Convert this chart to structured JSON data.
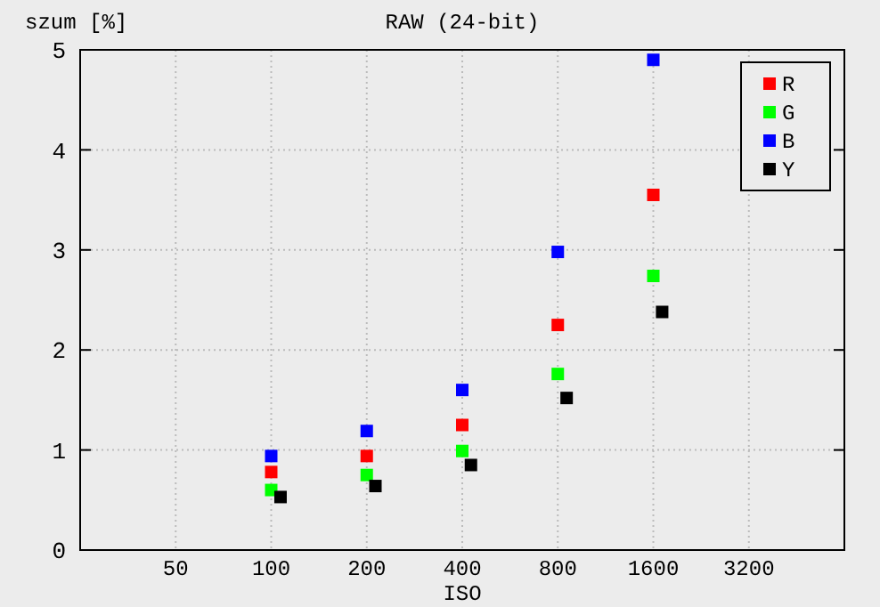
{
  "chart_data": {
    "type": "scatter",
    "title": "RAW (24-bit)",
    "xlabel": "ISO",
    "ylabel": "szum [%]",
    "log": "x",
    "xlim": [
      25,
      6400
    ],
    "xticks": [
      50,
      100,
      200,
      400,
      800,
      1600,
      3200
    ],
    "ylim": [
      0,
      5
    ],
    "yticks": [
      0,
      1,
      2,
      3,
      4,
      5
    ],
    "grid": true,
    "legend": "top right",
    "marker": "square",
    "series": [
      {
        "name": "R",
        "color": "#ff0000",
        "x": [
          100,
          200,
          400,
          800,
          1600
        ],
        "values": [
          0.78,
          0.94,
          1.25,
          2.25,
          3.55
        ]
      },
      {
        "name": "G",
        "color": "#00ff00",
        "x": [
          100,
          200,
          400,
          800,
          1600
        ],
        "values": [
          0.6,
          0.75,
          0.99,
          1.76,
          2.74
        ]
      },
      {
        "name": "B",
        "color": "#0000ff",
        "x": [
          100,
          200,
          400,
          800,
          1600
        ],
        "values": [
          0.94,
          1.19,
          1.6,
          2.98,
          4.9
        ]
      },
      {
        "name": "Y",
        "color": "#000000",
        "x": [
          107,
          213,
          426,
          853,
          1706
        ],
        "values": [
          0.53,
          0.64,
          0.85,
          1.52,
          2.38
        ]
      }
    ]
  }
}
